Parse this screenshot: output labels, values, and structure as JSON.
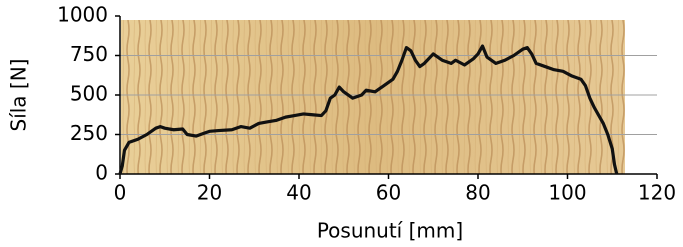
{
  "chart_data": {
    "type": "line",
    "xlabel": "Posunutí [mm]",
    "ylabel": "Síla [N]",
    "x": [
      0,
      0.5,
      1,
      2,
      4,
      6,
      8,
      9,
      10,
      12,
      14,
      15,
      17,
      19,
      20,
      22,
      25,
      27,
      29,
      31,
      33,
      35,
      37,
      39,
      41,
      43,
      45,
      46,
      47,
      48,
      49,
      50,
      52,
      54,
      55,
      57,
      59,
      61,
      62,
      63,
      64,
      65,
      66,
      67,
      68,
      70,
      72,
      74,
      75,
      77,
      79,
      80,
      81,
      82,
      84,
      86,
      88,
      90,
      91,
      92,
      93,
      95,
      97,
      99,
      101,
      103,
      104,
      105,
      106,
      107,
      108,
      109,
      110,
      110.5,
      111
    ],
    "values": [
      0,
      50,
      150,
      200,
      220,
      250,
      290,
      300,
      290,
      280,
      285,
      250,
      240,
      260,
      270,
      275,
      280,
      300,
      290,
      320,
      330,
      340,
      360,
      370,
      380,
      375,
      370,
      400,
      480,
      500,
      550,
      520,
      480,
      500,
      530,
      520,
      560,
      600,
      650,
      720,
      800,
      780,
      720,
      680,
      700,
      760,
      720,
      700,
      720,
      690,
      730,
      760,
      810,
      740,
      700,
      720,
      750,
      790,
      800,
      760,
      700,
      680,
      660,
      650,
      620,
      600,
      560,
      480,
      420,
      370,
      320,
      250,
      160,
      60,
      0
    ],
    "color": "#111111",
    "xlim": [
      0,
      120
    ],
    "xticks": [
      0,
      20,
      40,
      60,
      80,
      100,
      120
    ],
    "ylim": [
      0,
      1000
    ],
    "yticks": [
      0,
      250,
      500,
      750,
      1000
    ],
    "grid": true
  }
}
